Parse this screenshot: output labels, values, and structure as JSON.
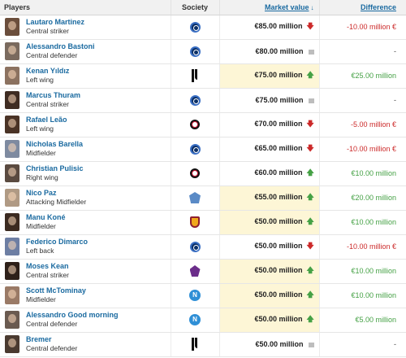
{
  "header": {
    "players": "Players",
    "society": "Society",
    "market_value": "Market value",
    "difference": "Difference"
  },
  "rows": [
    {
      "name": "Lautaro Martinez",
      "position": "Central striker",
      "club_icon": "inter-crest-icon",
      "value": "€85.00 million",
      "trend": "down",
      "diff": "-10.00 million €",
      "highlight": false,
      "avatar_color": "#6b4e3c"
    },
    {
      "name": "Alessandro Bastoni",
      "position": "Central defender",
      "club_icon": "inter-crest-icon",
      "value": "€80.00 million",
      "trend": "same",
      "diff": "-",
      "highlight": false,
      "avatar_color": "#7a6a5e"
    },
    {
      "name": "Kenan Yıldız",
      "position": "Left wing",
      "club_icon": "juventus-crest-icon",
      "value": "€75.00 million",
      "trend": "up",
      "diff": "€25.00 million",
      "highlight": true,
      "avatar_color": "#8c7260"
    },
    {
      "name": "Marcus Thuram",
      "position": "Central striker",
      "club_icon": "inter-crest-icon",
      "value": "€75.00 million",
      "trend": "same",
      "diff": "-",
      "highlight": false,
      "avatar_color": "#3f2c22"
    },
    {
      "name": "Rafael Leão",
      "position": "Left wing",
      "club_icon": "milan-crest-icon",
      "value": "€70.00 million",
      "trend": "down",
      "diff": "-5.00 million €",
      "highlight": false,
      "avatar_color": "#4a3326"
    },
    {
      "name": "Nicholas Barella",
      "position": "Midfielder",
      "club_icon": "inter-crest-icon",
      "value": "€65.00 million",
      "trend": "down",
      "diff": "-10.00 million €",
      "highlight": false,
      "avatar_color": "#7e8aa0"
    },
    {
      "name": "Christian Pulisic",
      "position": "Right wing",
      "club_icon": "milan-crest-icon",
      "value": "€60.00 million",
      "trend": "up",
      "diff": "€10.00 million",
      "highlight": false,
      "avatar_color": "#5a4a40"
    },
    {
      "name": "Nico Paz",
      "position": "Attacking Midfielder",
      "club_icon": "como-crest-icon",
      "value": "€55.00 million",
      "trend": "up",
      "diff": "€20.00 million",
      "highlight": true,
      "avatar_color": "#b09a84"
    },
    {
      "name": "Manu Koné",
      "position": "Midfielder",
      "club_icon": "roma-crest-icon",
      "value": "€50.00 million",
      "trend": "up",
      "diff": "€10.00 million",
      "highlight": true,
      "avatar_color": "#3b2a20"
    },
    {
      "name": "Federico Dimarco",
      "position": "Left back",
      "club_icon": "inter-crest-icon",
      "value": "€50.00 million",
      "trend": "down",
      "diff": "-10.00 million €",
      "highlight": false,
      "avatar_color": "#6d7ea3"
    },
    {
      "name": "Moses Kean",
      "position": "Central striker",
      "club_icon": "fiorentina-crest-icon",
      "value": "€50.00 million",
      "trend": "up",
      "diff": "€10.00 million",
      "highlight": true,
      "avatar_color": "#2e2019"
    },
    {
      "name": "Scott McTominay",
      "position": "Midfielder",
      "club_icon": "napoli-crest-icon",
      "value": "€50.00 million",
      "trend": "up",
      "diff": "€10.00 million",
      "highlight": true,
      "avatar_color": "#9a7a66"
    },
    {
      "name": "Alessandro Good morning",
      "position": "Central defender",
      "club_icon": "napoli-crest-icon",
      "value": "€50.00 million",
      "trend": "up",
      "diff": "€5.00 million",
      "highlight": true,
      "avatar_color": "#6a5a50"
    },
    {
      "name": "Bremer",
      "position": "Central defender",
      "club_icon": "juventus-crest-icon",
      "value": "€50.00 million",
      "trend": "same",
      "diff": "-",
      "highlight": false,
      "avatar_color": "#4a3a30"
    }
  ],
  "glyphs": {
    "up": "🡅",
    "down": "🡇",
    "napoli_letter": "N"
  }
}
